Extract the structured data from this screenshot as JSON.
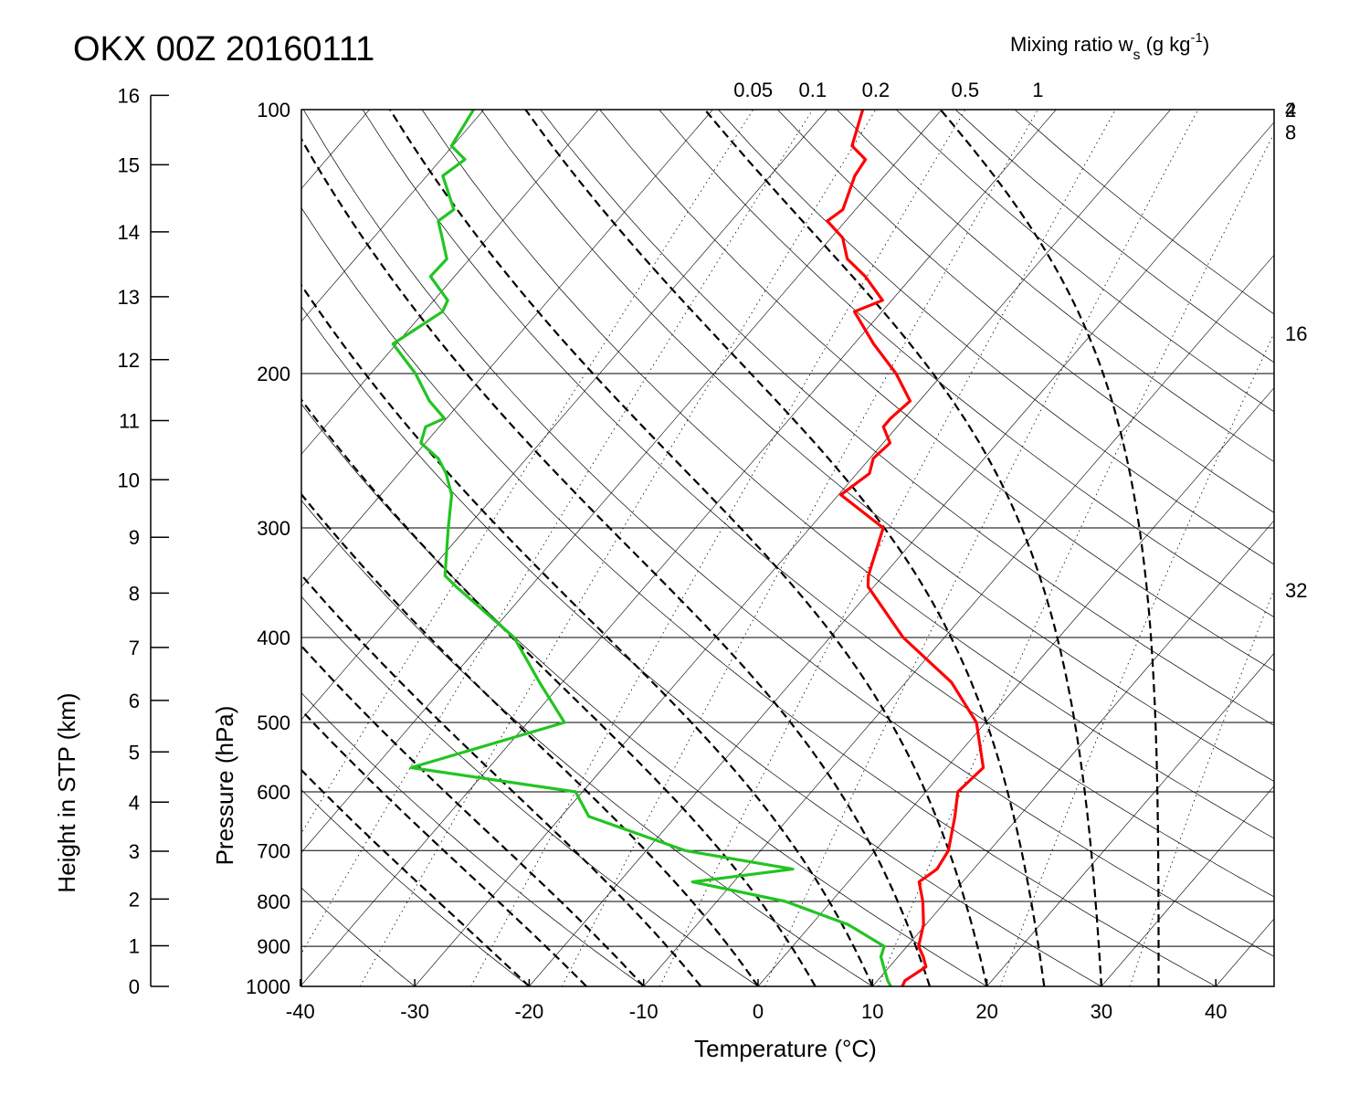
{
  "chart_data": {
    "type": "line",
    "title": "OKX 00Z 20160111",
    "xlabel": "Temperature (°C)",
    "ylabel": "Pressure (hPa)",
    "y2label": "Height in STP (km)",
    "mixing_ratio_title": "Mixing ratio w",
    "mixing_ratio_sub": "s",
    "mixing_ratio_unit_pre": " (g kg",
    "mixing_ratio_unit_sup": "-1",
    "mixing_ratio_unit_post": ")",
    "xlim": [
      -40,
      45
    ],
    "ylim": [
      1000,
      100
    ],
    "y_scale": "log",
    "x_ticks": [
      "-40",
      "-30",
      "-20",
      "-10",
      "0",
      "10",
      "20",
      "30",
      "40"
    ],
    "x_tick_values": [
      -40,
      -30,
      -20,
      -10,
      0,
      10,
      20,
      30,
      40
    ],
    "p_ticks": [
      "100",
      "200",
      "300",
      "400",
      "500",
      "600",
      "700",
      "800",
      "900",
      "1000"
    ],
    "p_tick_values": [
      100,
      200,
      300,
      400,
      500,
      600,
      700,
      800,
      900,
      1000
    ],
    "height_ticks": [
      "0",
      "1",
      "2",
      "3",
      "4",
      "5",
      "6",
      "7",
      "8",
      "9",
      "10",
      "11",
      "12",
      "13",
      "14",
      "15",
      "16"
    ],
    "mixing_top_labels": [
      "0.05",
      "0.1",
      "0.2",
      "0.5",
      "1"
    ],
    "mixing_right_labels": [
      "2",
      "4",
      "8",
      "16",
      "32"
    ],
    "mixing_ratios": [
      0.05,
      0.1,
      0.2,
      0.5,
      1,
      2,
      4,
      8,
      16,
      32
    ],
    "skew_temps": [
      -110,
      -100,
      -90,
      -80,
      -70,
      -60,
      -50,
      -40,
      -30,
      -20,
      -10,
      0,
      10,
      20,
      30,
      40
    ],
    "dry_adiabats": [
      -40,
      -30,
      -20,
      -10,
      0,
      10,
      20,
      30,
      40,
      50,
      60,
      70,
      80,
      90,
      100,
      110,
      120,
      130,
      140,
      150,
      160,
      170
    ],
    "moist_adiabats": [
      -20,
      -15,
      -10,
      -5,
      0,
      5,
      10,
      15,
      20,
      25,
      30,
      35
    ],
    "series": [
      {
        "name": "temperature",
        "color": "#ff0000",
        "pressure": [
          1000,
          985,
          950,
          925,
          900,
          850,
          800,
          760,
          735,
          700,
          640,
          600,
          563,
          500,
          450,
          400,
          350,
          340,
          300,
          275,
          260,
          250,
          240,
          230,
          225,
          215,
          200,
          185,
          170,
          165,
          155,
          148,
          140,
          134,
          130,
          119,
          114,
          110,
          100
        ],
        "temp": [
          12.6,
          12.4,
          13.2,
          12.2,
          11.0,
          9.8,
          8.0,
          6.2,
          6.8,
          6.4,
          4.4,
          2.8,
          3.2,
          -0.8,
          -6.0,
          -13.6,
          -20.5,
          -21.3,
          -23.6,
          -29.8,
          -28.9,
          -29.7,
          -29.4,
          -31.2,
          -31.2,
          -30.8,
          -34.1,
          -38.3,
          -42.4,
          -40.8,
          -44.1,
          -47.0,
          -49.0,
          -51.6,
          -51.1,
          -52.6,
          -52.9,
          -55.1,
          -56.9
        ]
      },
      {
        "name": "dewpoint",
        "color": "#22c422",
        "pressure": [
          1000,
          985,
          950,
          925,
          900,
          850,
          800,
          760,
          735,
          700,
          640,
          600,
          563,
          500,
          450,
          400,
          350,
          340,
          300,
          275,
          260,
          250,
          240,
          230,
          225,
          215,
          200,
          185,
          170,
          165,
          155,
          148,
          140,
          134,
          130,
          119,
          114,
          110,
          100
        ],
        "temp": [
          11.6,
          10.9,
          9.5,
          8.5,
          8.0,
          3.2,
          -4.0,
          -13.6,
          -5.8,
          -16.6,
          -27.6,
          -30.6,
          -46.8,
          -36.8,
          -42.0,
          -47.6,
          -56.5,
          -58.3,
          -61.6,
          -63.8,
          -65.9,
          -67.7,
          -70.4,
          -71.2,
          -70.2,
          -72.8,
          -76.1,
          -80.3,
          -78.4,
          -78.8,
          -82.1,
          -82.0,
          -84.0,
          -85.6,
          -85.1,
          -88.6,
          -87.9,
          -90.1,
          -90.9
        ]
      }
    ]
  }
}
